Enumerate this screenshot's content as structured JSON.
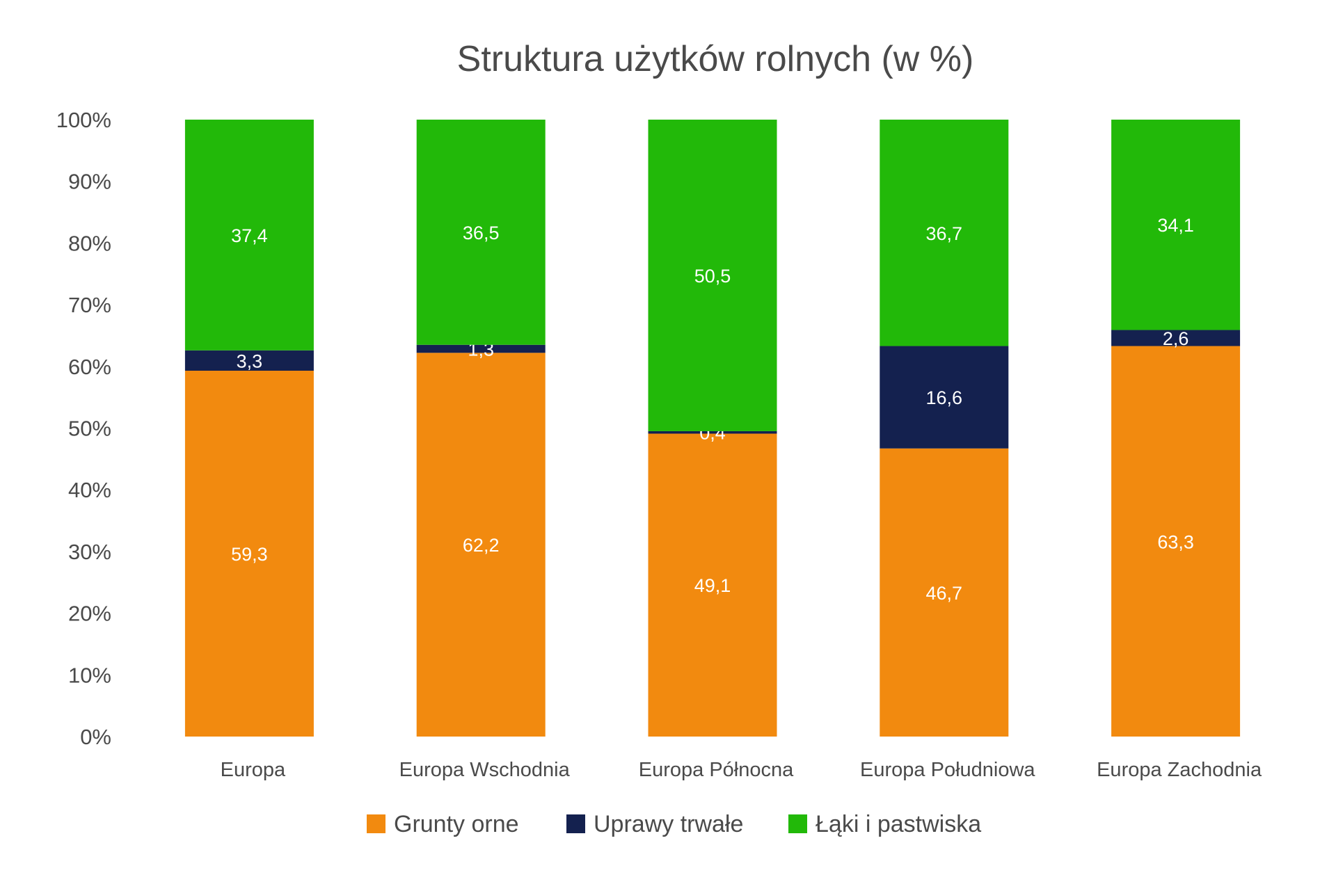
{
  "chart_data": {
    "type": "bar",
    "stacked": true,
    "normalized": true,
    "title": "Struktura użytków rolnych (w %)",
    "xlabel": "",
    "ylabel": "",
    "ylim": [
      0,
      100
    ],
    "yticks": [
      "0%",
      "10%",
      "20%",
      "30%",
      "40%",
      "50%",
      "60%",
      "70%",
      "80%",
      "90%",
      "100%"
    ],
    "grid": false,
    "legend_position": "bottom",
    "categories": [
      "Europa",
      "Europa Wschodnia",
      "Europa Północna",
      "Europa Południowa",
      "Europa Zachodnia"
    ],
    "series": [
      {
        "name": "Grunty orne",
        "color": "#F28A0F",
        "values": [
          59.3,
          62.2,
          49.1,
          46.7,
          63.3
        ],
        "labels": [
          "59,3",
          "62,2",
          "49,1",
          "46,7",
          "63,3"
        ]
      },
      {
        "name": "Uprawy trwałe",
        "color": "#14214F",
        "values": [
          3.3,
          1.3,
          0.4,
          16.6,
          2.6
        ],
        "labels": [
          "3,3",
          "1,3",
          "0,4",
          "16,6",
          "2,6"
        ]
      },
      {
        "name": "Łąki i pastwiska",
        "color": "#22B909",
        "values": [
          37.4,
          36.5,
          50.5,
          36.7,
          34.1
        ],
        "labels": [
          "37,4",
          "36,5",
          "50,5",
          "36,7",
          "34,1"
        ]
      }
    ]
  }
}
